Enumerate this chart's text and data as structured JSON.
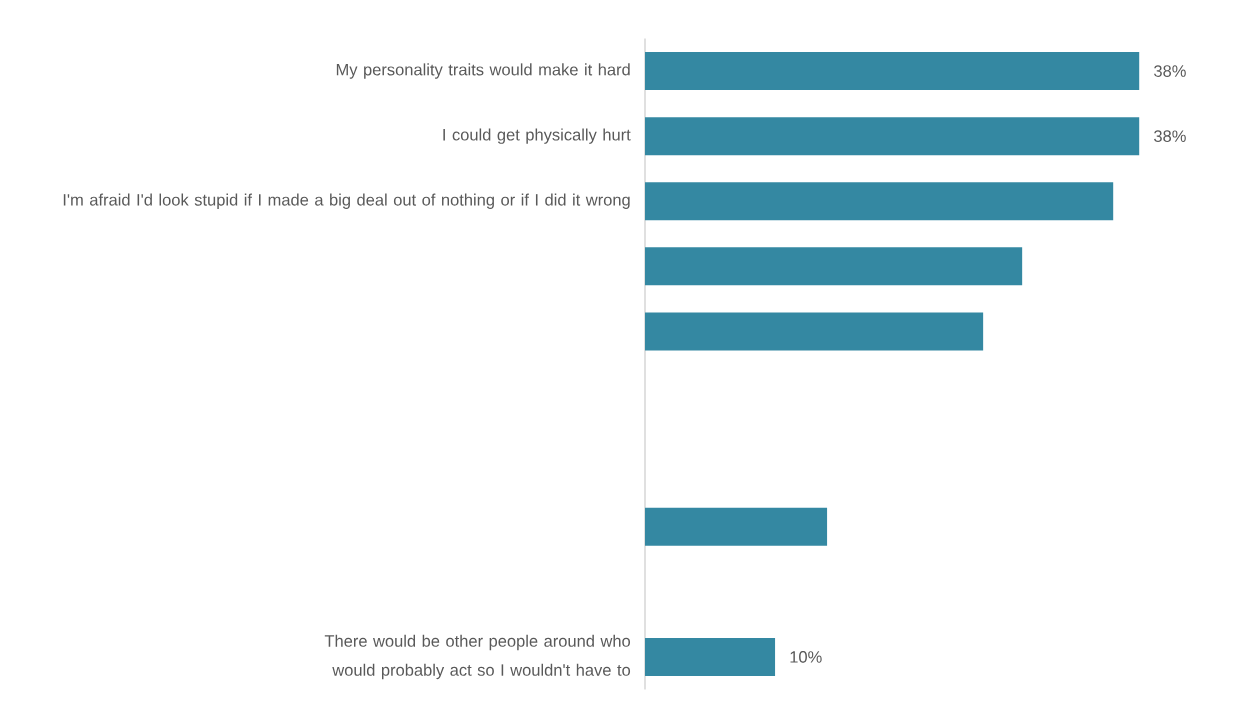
{
  "chart_data": {
    "type": "bar",
    "orientation": "horizontal",
    "categories": [
      "My personality traits would make it hard",
      "I could get physically hurt",
      "I'm afraid I'd look stupid if I made a big deal out of nothing or if I did it wrong",
      null,
      null,
      null,
      null,
      null,
      null,
      "There would be other people around who would probably act so I wouldn't have to"
    ],
    "values": [
      38,
      38,
      36,
      29,
      26,
      null,
      null,
      14,
      null,
      10
    ],
    "value_labels": [
      "38%",
      "38%",
      null,
      null,
      null,
      null,
      null,
      null,
      null,
      "10%"
    ],
    "color": "#3488a2"
  }
}
